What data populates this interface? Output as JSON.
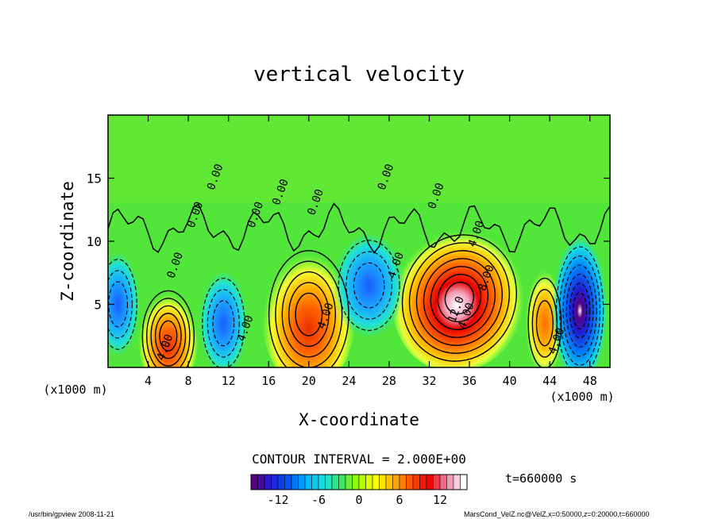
{
  "chart_data": {
    "type": "heatmap",
    "subtype": "filled contour",
    "title": "vertical velocity",
    "xlabel": "X-coordinate",
    "ylabel": "Z-coordinate",
    "x_unit_left": "(x1000 m)",
    "x_unit_right": "(x1000 m)",
    "xlim": [
      0,
      50
    ],
    "ylim": [
      0,
      20
    ],
    "x_ticks": [
      "4",
      "8",
      "12",
      "16",
      "20",
      "24",
      "28",
      "32",
      "36",
      "40",
      "44",
      "48"
    ],
    "y_ticks": [
      "5",
      "10",
      "15"
    ],
    "contour_interval_text": "CONTOUR INTERVAL = 2.000E+00",
    "time_label": "t=660000 s",
    "contour_labels": [
      "0.00",
      "0.00",
      "0.00",
      "0.00",
      "0.00",
      "0.00",
      "0.00",
      "0.00",
      "4.00",
      "4.00",
      "4.00",
      "4.00",
      "4.00",
      "4.00",
      "4.00",
      "8.00",
      "12.0"
    ],
    "colorbar": {
      "range": [
        -16,
        16
      ],
      "ticks": [
        "-12",
        "-6",
        "0",
        "6",
        "12"
      ],
      "colors": [
        "#5a0082",
        "#1f1fd6",
        "#0058ff",
        "#00b4ff",
        "#18e0e0",
        "#39e660",
        "#a8ff00",
        "#ffff00",
        "#ffb000",
        "#ff5000",
        "#e80000",
        "#f080a0",
        "#ffffff"
      ]
    },
    "features": [
      {
        "x": 6,
        "z": 2.5,
        "w": 5.5,
        "peak": 9
      },
      {
        "x": 20,
        "z": 4.2,
        "w": 8.5,
        "peak": 10
      },
      {
        "x": 35,
        "z": 5.5,
        "w": 12,
        "peak": 16
      },
      {
        "x": 43.5,
        "z": 3.5,
        "w": 3.5,
        "peak": 6
      },
      {
        "x": 11.5,
        "z": 3.5,
        "w": 4.5,
        "peak": -5
      },
      {
        "x": 26,
        "z": 6.5,
        "w": 6.5,
        "peak": -5
      },
      {
        "x": 47,
        "z": 4.5,
        "w": 5,
        "peak": -12
      },
      {
        "x": 1,
        "z": 5,
        "w": 4,
        "peak": -6
      }
    ],
    "grid": false,
    "legend": "colorbar-bottom"
  },
  "footer": {
    "left": "/usr/bin/gpview  2008-11-21",
    "right": "MarsCond_VelZ.nc@VelZ,x=0:50000,z=0:20000,t=660000"
  }
}
